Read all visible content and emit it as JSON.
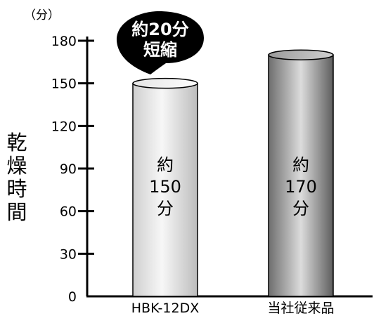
{
  "chart_data": {
    "type": "bar",
    "title": "",
    "xlabel": "",
    "ylabel": "乾燥時間",
    "unit_label": "（分）",
    "ylim": [
      0,
      180
    ],
    "yticks": [
      0,
      30,
      60,
      90,
      120,
      150,
      180
    ],
    "categories": [
      "HBK-12DX",
      "当社従来品"
    ],
    "values": [
      150,
      170
    ],
    "value_labels": [
      [
        "約",
        "150",
        "分"
      ],
      [
        "約",
        "170",
        "分"
      ]
    ],
    "callout": [
      "約20分",
      "短縮"
    ],
    "grid": false,
    "legend": "none"
  }
}
